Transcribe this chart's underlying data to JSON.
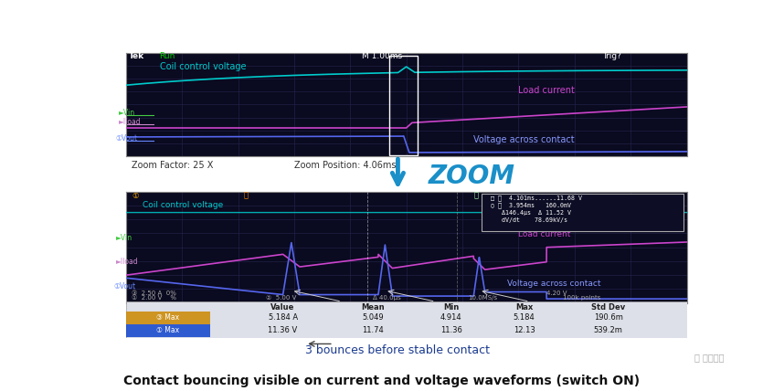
{
  "fig_width": 8.35,
  "fig_height": 4.28,
  "bg_color": "#f0f0f0",
  "outer_bg": "#ffffff",
  "title": "Contact bouncing visible on current and voltage waveforms (switch ON)",
  "title_fontsize": 11,
  "subtitle_bounce": "3 bounces before stable contact",
  "subtitle_color": "#1a3a8f",
  "subtitle_fontsize": 10,
  "zoom_label": "ZOOM",
  "zoom_color": "#1a8fc8",
  "scope_bg": "#0a0a20",
  "grid_color": "#252550",
  "coil_color": "#00cccc",
  "load_current_color": "#cc44cc",
  "voltage_contact_color": "#5566ee",
  "coil_label": "Coil control voltage",
  "load_label": "Load current",
  "voltage_label": "Voltage across contact",
  "zoom_factor_text": "Zoom Factor: 25 X",
  "zoom_pos_text": "Zoom Position: 4.06ms",
  "watermark": "九章智驾"
}
